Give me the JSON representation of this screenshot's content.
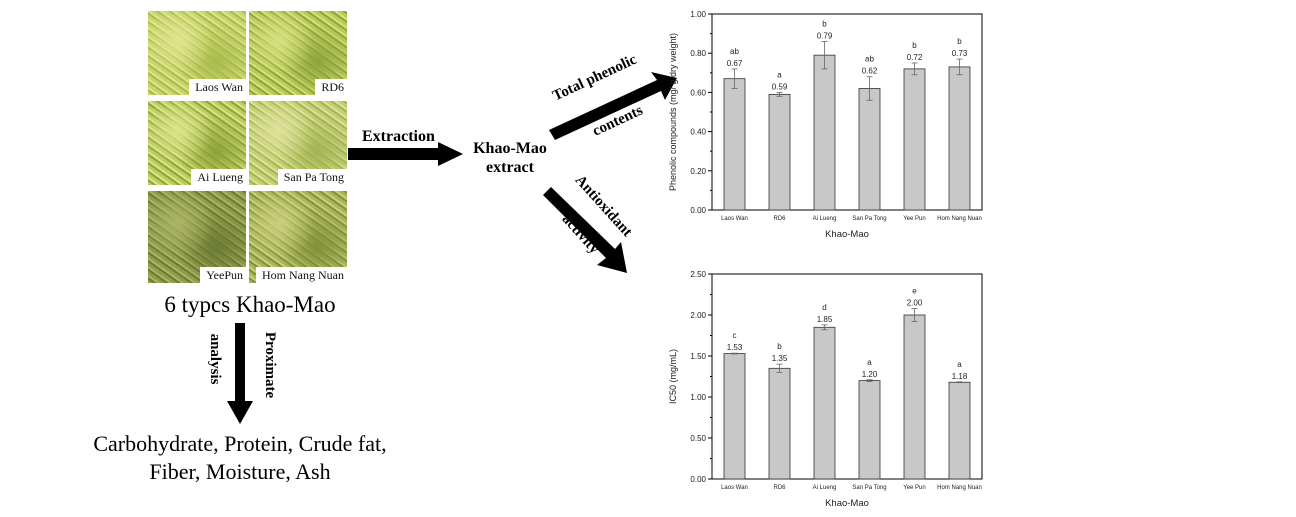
{
  "samples": {
    "photos": [
      {
        "label": "Laos Wan",
        "colors": [
          "#c7d46a",
          "#a9bb4c",
          "#dfe58e"
        ]
      },
      {
        "label": "RD6",
        "colors": [
          "#b9cc5a",
          "#8fa53c",
          "#d6e07e"
        ]
      },
      {
        "label": "Ai Lueng",
        "colors": [
          "#bccd5d",
          "#8ea33a",
          "#dbe48a"
        ]
      },
      {
        "label": "San Pa Tong",
        "colors": [
          "#c4cf72",
          "#a4b455",
          "#dde29a"
        ]
      },
      {
        "label": "YeePun",
        "colors": [
          "#8f9c4a",
          "#6c7a33",
          "#aab465"
        ]
      },
      {
        "label": "Hom Nang Nuan",
        "colors": [
          "#a9b558",
          "#82913a",
          "#c9cf7c"
        ]
      }
    ],
    "caption": "6 typcs Khao-Mao"
  },
  "flow": {
    "extraction_label": "Extraction",
    "extract_line1": "Khao-Mao",
    "extract_line2": "extract",
    "tpc_line1": "Total phenolic",
    "tpc_line2": "contents",
    "anti_line1": "Antioxidant",
    "anti_line2": "activity",
    "proximate_line1": "Proximate",
    "proximate_line2": "analysis",
    "result_line1": "Carbohydrate, Protein, Crude fat,",
    "result_line2": "Fiber, Moisture, Ash"
  },
  "chart_data": [
    {
      "type": "bar",
      "title": "",
      "xlabel": "Khao-Mao",
      "ylabel": "Phenolic compounds (mg/ g dry weight)",
      "categories": [
        "Laos Wan",
        "RD6",
        "Ai Lueng",
        "San Pa Tong",
        "Yee Pun",
        "Hom Nang Nuan"
      ],
      "values": [
        0.67,
        0.59,
        0.79,
        0.62,
        0.72,
        0.73
      ],
      "value_labels": [
        "0.67",
        "0.59",
        "0.79",
        "0.62",
        "0.72",
        "0.73"
      ],
      "errors": [
        0.05,
        0.01,
        0.07,
        0.06,
        0.03,
        0.04
      ],
      "letters": [
        "ab",
        "a",
        "b",
        "ab",
        "b",
        "b"
      ],
      "ylim": [
        0,
        1.0
      ],
      "yticks": [
        "0.00",
        "0.20",
        "0.40",
        "0.60",
        "0.80",
        "1.00"
      ],
      "ytick_values": [
        0,
        0.2,
        0.4,
        0.6,
        0.8,
        1.0
      ],
      "grid": false,
      "bar_color": "#c8c8c8"
    },
    {
      "type": "bar",
      "title": "",
      "xlabel": "Khao-Mao",
      "ylabel": "IC50 (mg/mL)",
      "categories": [
        "Laos Wan",
        "RD6",
        "Ai Lueng",
        "San Pa Tong",
        "Yee Pun",
        "Hom Nang Nuan"
      ],
      "values": [
        1.53,
        1.35,
        1.85,
        1.2,
        2.0,
        1.18
      ],
      "value_labels": [
        "1.53",
        "1.35",
        "1.85",
        "1.20",
        "2.00",
        "1.18"
      ],
      "errors": [
        0.005,
        0.05,
        0.03,
        0.01,
        0.08,
        0.005
      ],
      "letters": [
        "c",
        "b",
        "d",
        "a",
        "e",
        "a"
      ],
      "ylim": [
        0,
        2.5
      ],
      "yticks": [
        "0.00",
        "0.50",
        "1.00",
        "1.50",
        "2.00",
        "2.50"
      ],
      "ytick_values": [
        0,
        0.5,
        1.0,
        1.5,
        2.0,
        2.5
      ],
      "grid": false,
      "bar_color": "#c8c8c8"
    }
  ]
}
